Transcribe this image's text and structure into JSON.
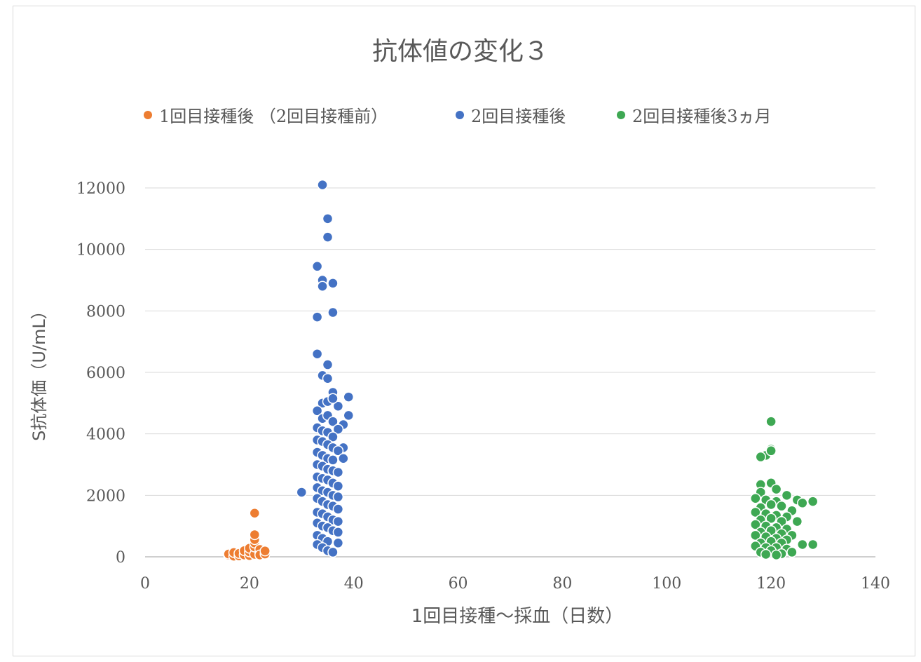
{
  "chart_data": {
    "type": "scatter",
    "title": "抗体値の変化３",
    "xlabel": "1回目接種～採血（日数）",
    "ylabel": "S抗体価（U/mL）",
    "xlim": [
      0,
      140
    ],
    "ylim": [
      0,
      12000
    ],
    "xticks": [
      "0",
      "20",
      "40",
      "60",
      "80",
      "100",
      "120",
      "140"
    ],
    "yticks": [
      "0",
      "2000",
      "4000",
      "6000",
      "8000",
      "10000",
      "12000"
    ],
    "grid": "horizontal",
    "legend_position": "top",
    "series": [
      {
        "name": "1回目接種後 （2回目接種前）",
        "color": "#ED7D31",
        "points": [
          [
            16,
            50
          ],
          [
            16,
            90
          ],
          [
            17,
            20
          ],
          [
            17,
            140
          ],
          [
            18,
            30
          ],
          [
            18,
            110
          ],
          [
            19,
            60
          ],
          [
            19,
            200
          ],
          [
            20,
            40
          ],
          [
            20,
            160
          ],
          [
            20,
            280
          ],
          [
            21,
            80
          ],
          [
            21,
            320
          ],
          [
            21,
            450
          ],
          [
            21,
            560
          ],
          [
            21,
            720
          ],
          [
            21,
            1420
          ],
          [
            22,
            120
          ],
          [
            22,
            240
          ],
          [
            22,
            60
          ],
          [
            23,
            90
          ],
          [
            23,
            190
          ]
        ]
      },
      {
        "name": "2回目接種後",
        "color": "#4472C4",
        "points": [
          [
            34,
            12100
          ],
          [
            35,
            11000
          ],
          [
            35,
            10400
          ],
          [
            33,
            9450
          ],
          [
            34,
            9000
          ],
          [
            34,
            8800
          ],
          [
            36,
            8900
          ],
          [
            33,
            7800
          ],
          [
            36,
            7950
          ],
          [
            33,
            6600
          ],
          [
            35,
            6250
          ],
          [
            34,
            5900
          ],
          [
            35,
            5800
          ],
          [
            36,
            5350
          ],
          [
            39,
            5200
          ],
          [
            34,
            5000
          ],
          [
            35,
            5050
          ],
          [
            37,
            4900
          ],
          [
            36,
            5150
          ],
          [
            33,
            4750
          ],
          [
            39,
            4600
          ],
          [
            34,
            4500
          ],
          [
            35,
            4600
          ],
          [
            36,
            4400
          ],
          [
            38,
            4300
          ],
          [
            33,
            4200
          ],
          [
            34,
            4100
          ],
          [
            35,
            4050
          ],
          [
            37,
            4150
          ],
          [
            36,
            3900
          ],
          [
            33,
            3800
          ],
          [
            34,
            3750
          ],
          [
            35,
            3650
          ],
          [
            36,
            3550
          ],
          [
            38,
            3550
          ],
          [
            37,
            3450
          ],
          [
            33,
            3400
          ],
          [
            34,
            3300
          ],
          [
            35,
            3200
          ],
          [
            36,
            3150
          ],
          [
            38,
            3200
          ],
          [
            33,
            3000
          ],
          [
            34,
            2950
          ],
          [
            35,
            2850
          ],
          [
            36,
            2800
          ],
          [
            37,
            2750
          ],
          [
            33,
            2600
          ],
          [
            34,
            2550
          ],
          [
            35,
            2500
          ],
          [
            36,
            2400
          ],
          [
            37,
            2300
          ],
          [
            33,
            2250
          ],
          [
            34,
            2150
          ],
          [
            35,
            2100
          ],
          [
            30,
            2100
          ],
          [
            36,
            2000
          ],
          [
            37,
            1950
          ],
          [
            33,
            1900
          ],
          [
            34,
            1800
          ],
          [
            35,
            1700
          ],
          [
            36,
            1650
          ],
          [
            37,
            1550
          ],
          [
            33,
            1450
          ],
          [
            34,
            1400
          ],
          [
            35,
            1300
          ],
          [
            36,
            1200
          ],
          [
            37,
            1150
          ],
          [
            33,
            1100
          ],
          [
            34,
            1000
          ],
          [
            35,
            950
          ],
          [
            36,
            850
          ],
          [
            37,
            800
          ],
          [
            33,
            700
          ],
          [
            34,
            600
          ],
          [
            35,
            500
          ],
          [
            37,
            450
          ],
          [
            33,
            400
          ],
          [
            34,
            300
          ],
          [
            35,
            200
          ],
          [
            36,
            150
          ]
        ]
      },
      {
        "name": "2回目接種後3ヵ月",
        "color": "#3EA853",
        "points": [
          [
            120,
            4400
          ],
          [
            120,
            3500
          ],
          [
            119,
            3300
          ],
          [
            120,
            3450
          ],
          [
            118,
            3250
          ],
          [
            120,
            2400
          ],
          [
            118,
            2350
          ],
          [
            121,
            2200
          ],
          [
            123,
            2000
          ],
          [
            118,
            2100
          ],
          [
            125,
            1850
          ],
          [
            126,
            1750
          ],
          [
            128,
            1800
          ],
          [
            117,
            1900
          ],
          [
            119,
            1850
          ],
          [
            121,
            1800
          ],
          [
            120,
            1700
          ],
          [
            122,
            1650
          ],
          [
            118,
            1600
          ],
          [
            124,
            1500
          ],
          [
            117,
            1450
          ],
          [
            119,
            1400
          ],
          [
            121,
            1350
          ],
          [
            123,
            1300
          ],
          [
            120,
            1250
          ],
          [
            118,
            1200
          ],
          [
            122,
            1150
          ],
          [
            125,
            1150
          ],
          [
            117,
            1050
          ],
          [
            119,
            1000
          ],
          [
            121,
            950
          ],
          [
            123,
            900
          ],
          [
            120,
            850
          ],
          [
            118,
            800
          ],
          [
            122,
            750
          ],
          [
            117,
            700
          ],
          [
            124,
            700
          ],
          [
            119,
            650
          ],
          [
            121,
            600
          ],
          [
            123,
            550
          ],
          [
            120,
            500
          ],
          [
            118,
            450
          ],
          [
            122,
            450
          ],
          [
            126,
            400
          ],
          [
            128,
            400
          ],
          [
            117,
            350
          ],
          [
            119,
            300
          ],
          [
            121,
            300
          ],
          [
            123,
            250
          ],
          [
            120,
            200
          ],
          [
            118,
            150
          ],
          [
            124,
            150
          ],
          [
            122,
            100
          ],
          [
            119,
            80
          ],
          [
            121,
            60
          ]
        ]
      }
    ]
  }
}
